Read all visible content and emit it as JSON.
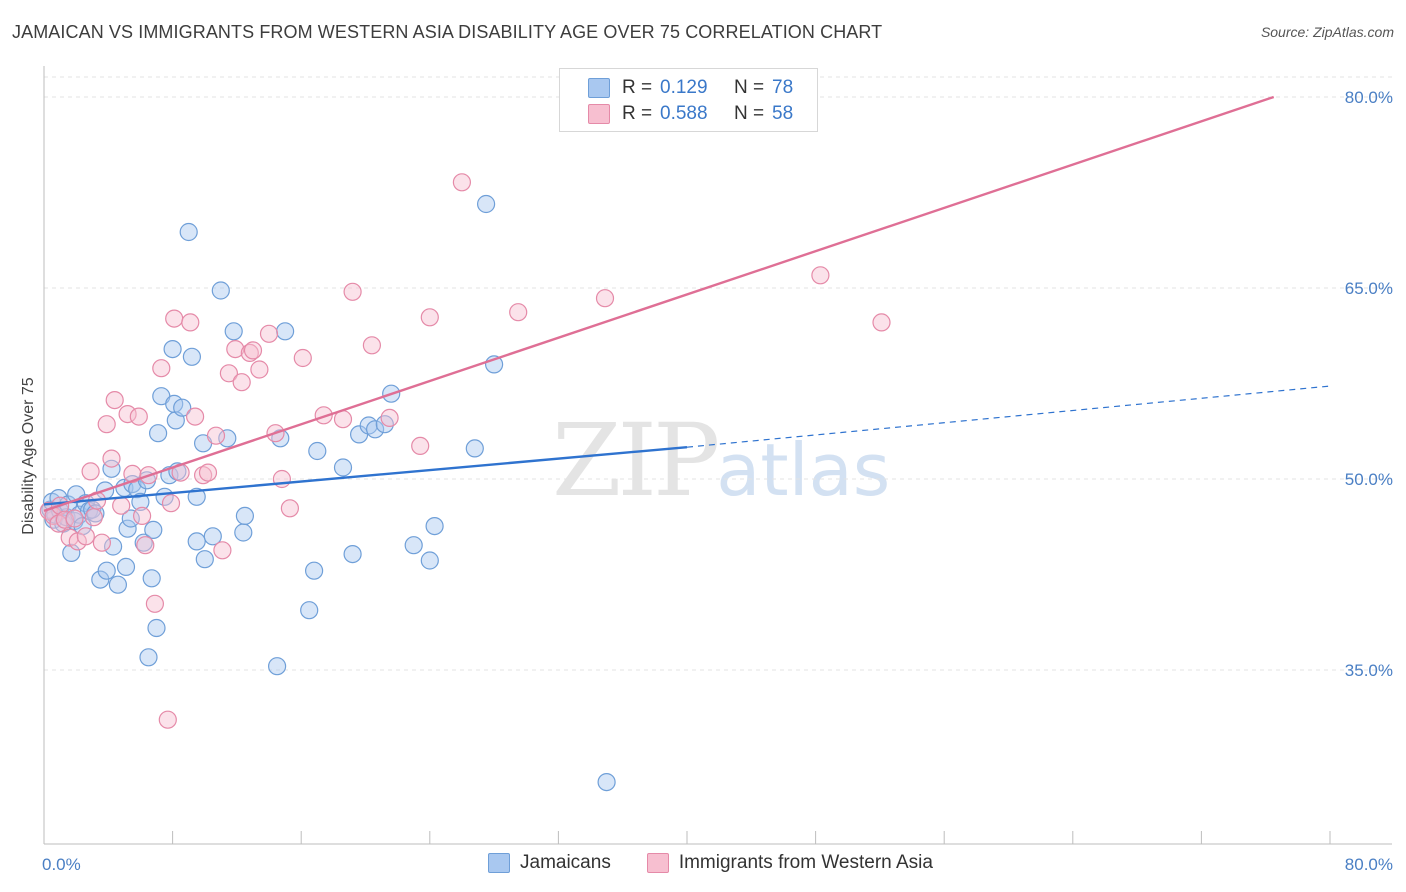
{
  "header": {
    "title": "JAMAICAN VS IMMIGRANTS FROM WESTERN ASIA DISABILITY AGE OVER 75 CORRELATION CHART",
    "source": "Source: ZipAtlas.com"
  },
  "watermark": {
    "zip": "ZIP",
    "atlas": "atlas"
  },
  "legend": {
    "rows": [
      {
        "r_label": "R =",
        "r_value": "0.129",
        "n_label": "N =",
        "n_value": "78",
        "color": "#a9c8f0",
        "border": "#6f9fd8"
      },
      {
        "r_label": "R =",
        "r_value": "0.588",
        "n_label": "N =",
        "n_value": "58",
        "color": "#f7bfd0",
        "border": "#e58aa8"
      }
    ]
  },
  "bottom_legend": {
    "items": [
      {
        "label": "Jamaicans",
        "color": "#a9c8f0",
        "border": "#6f9fd8"
      },
      {
        "label": "Immigrants from Western Asia",
        "color": "#f7bfd0",
        "border": "#e58aa8"
      }
    ]
  },
  "chart_data": {
    "type": "scatter",
    "title": "JAMAICAN VS IMMIGRANTS FROM WESTERN ASIA DISABILITY AGE OVER 75 CORRELATION CHART",
    "xlabel": "",
    "ylabel": "Disability Age Over 75",
    "xlim": [
      0,
      80
    ],
    "ylim": [
      20.5,
      82
    ],
    "x_tick_labels": [
      "0.0%",
      "80.0%"
    ],
    "y_ticks": [
      35,
      50,
      65,
      80
    ],
    "y_tick_labels": [
      "35.0%",
      "50.0%",
      "65.0%",
      "80.0%"
    ],
    "grid": true,
    "legend_position": "top-center",
    "series": [
      {
        "name": "Jamaicans",
        "color": "#6f9fd8",
        "fill": "#a9c8f0",
        "trend": {
          "x": [
            0,
            40
          ],
          "y": [
            48.0,
            52.5
          ],
          "extended_to": [
            80,
            57.3
          ]
        },
        "points": [
          [
            0.4,
            47.6
          ],
          [
            0.5,
            48.2
          ],
          [
            0.6,
            46.8
          ],
          [
            0.7,
            47.2
          ],
          [
            0.9,
            48.5
          ],
          [
            1.0,
            47.5
          ],
          [
            1.2,
            46.5
          ],
          [
            1.4,
            47.0
          ],
          [
            1.5,
            48.0
          ],
          [
            1.7,
            44.2
          ],
          [
            1.9,
            46.7
          ],
          [
            2.0,
            48.8
          ],
          [
            2.2,
            47.2
          ],
          [
            2.4,
            46.3
          ],
          [
            2.6,
            48.1
          ],
          [
            2.8,
            47.5
          ],
          [
            3.0,
            47.6
          ],
          [
            3.2,
            47.3
          ],
          [
            3.5,
            42.1
          ],
          [
            3.8,
            49.1
          ],
          [
            3.9,
            42.8
          ],
          [
            4.2,
            50.8
          ],
          [
            4.3,
            44.7
          ],
          [
            4.6,
            41.7
          ],
          [
            5.0,
            49.3
          ],
          [
            5.1,
            43.1
          ],
          [
            5.2,
            46.1
          ],
          [
            5.4,
            46.9
          ],
          [
            5.5,
            49.6
          ],
          [
            5.8,
            49.2
          ],
          [
            6.0,
            48.2
          ],
          [
            6.2,
            45.0
          ],
          [
            6.4,
            49.9
          ],
          [
            6.5,
            36.0
          ],
          [
            6.7,
            42.2
          ],
          [
            6.8,
            46.0
          ],
          [
            7.0,
            38.3
          ],
          [
            7.1,
            53.6
          ],
          [
            7.3,
            56.5
          ],
          [
            7.5,
            48.6
          ],
          [
            7.8,
            50.3
          ],
          [
            8.0,
            60.2
          ],
          [
            8.1,
            55.9
          ],
          [
            8.2,
            54.6
          ],
          [
            8.3,
            50.6
          ],
          [
            8.6,
            55.6
          ],
          [
            9.0,
            69.4
          ],
          [
            9.2,
            59.6
          ],
          [
            9.5,
            48.6
          ],
          [
            9.5,
            45.1
          ],
          [
            9.9,
            52.8
          ],
          [
            10.0,
            43.7
          ],
          [
            10.5,
            45.5
          ],
          [
            11.0,
            64.8
          ],
          [
            11.4,
            53.2
          ],
          [
            11.8,
            61.6
          ],
          [
            12.4,
            45.8
          ],
          [
            12.5,
            47.1
          ],
          [
            14.5,
            35.3
          ],
          [
            14.7,
            53.2
          ],
          [
            15.0,
            61.6
          ],
          [
            16.5,
            39.7
          ],
          [
            16.8,
            42.8
          ],
          [
            17.0,
            52.2
          ],
          [
            18.6,
            50.9
          ],
          [
            19.2,
            44.1
          ],
          [
            19.6,
            53.5
          ],
          [
            20.2,
            54.2
          ],
          [
            20.6,
            53.9
          ],
          [
            21.2,
            54.3
          ],
          [
            21.6,
            56.7
          ],
          [
            23.0,
            44.8
          ],
          [
            24.0,
            43.6
          ],
          [
            24.3,
            46.3
          ],
          [
            26.8,
            52.4
          ],
          [
            27.5,
            71.6
          ],
          [
            28.0,
            59.0
          ],
          [
            35.0,
            26.2
          ]
        ]
      },
      {
        "name": "Immigrants from Western Asia",
        "color": "#e58aa8",
        "fill": "#f7bfd0",
        "trend": {
          "x": [
            0,
            76.5
          ],
          "y": [
            47.5,
            80.0
          ]
        },
        "points": [
          [
            0.3,
            47.5
          ],
          [
            0.6,
            47.1
          ],
          [
            0.9,
            46.5
          ],
          [
            1.0,
            47.9
          ],
          [
            1.3,
            46.8
          ],
          [
            1.6,
            45.4
          ],
          [
            1.9,
            46.9
          ],
          [
            2.1,
            45.1
          ],
          [
            2.6,
            45.5
          ],
          [
            2.9,
            50.6
          ],
          [
            3.1,
            47.0
          ],
          [
            3.3,
            48.3
          ],
          [
            3.6,
            45.0
          ],
          [
            3.9,
            54.3
          ],
          [
            4.2,
            51.6
          ],
          [
            4.4,
            56.2
          ],
          [
            4.8,
            47.9
          ],
          [
            5.2,
            55.1
          ],
          [
            5.5,
            50.4
          ],
          [
            5.9,
            54.9
          ],
          [
            6.1,
            47.1
          ],
          [
            6.3,
            44.8
          ],
          [
            6.5,
            50.3
          ],
          [
            6.9,
            40.2
          ],
          [
            7.3,
            58.7
          ],
          [
            7.7,
            31.1
          ],
          [
            7.9,
            48.1
          ],
          [
            8.1,
            62.6
          ],
          [
            8.5,
            50.5
          ],
          [
            9.1,
            62.3
          ],
          [
            9.4,
            54.9
          ],
          [
            9.9,
            50.3
          ],
          [
            10.2,
            50.5
          ],
          [
            10.7,
            53.4
          ],
          [
            11.1,
            44.4
          ],
          [
            11.5,
            58.3
          ],
          [
            11.9,
            60.2
          ],
          [
            12.3,
            57.6
          ],
          [
            12.8,
            59.9
          ],
          [
            13.0,
            60.1
          ],
          [
            13.4,
            58.6
          ],
          [
            14.0,
            61.4
          ],
          [
            14.4,
            53.6
          ],
          [
            14.8,
            50.0
          ],
          [
            15.3,
            47.7
          ],
          [
            16.1,
            59.5
          ],
          [
            17.4,
            55.0
          ],
          [
            18.6,
            54.7
          ],
          [
            19.2,
            64.7
          ],
          [
            20.4,
            60.5
          ],
          [
            21.5,
            54.8
          ],
          [
            23.4,
            52.6
          ],
          [
            24.0,
            62.7
          ],
          [
            26.0,
            73.3
          ],
          [
            29.5,
            63.1
          ],
          [
            34.9,
            64.2
          ],
          [
            48.3,
            66.0
          ],
          [
            52.1,
            62.3
          ]
        ]
      }
    ]
  }
}
